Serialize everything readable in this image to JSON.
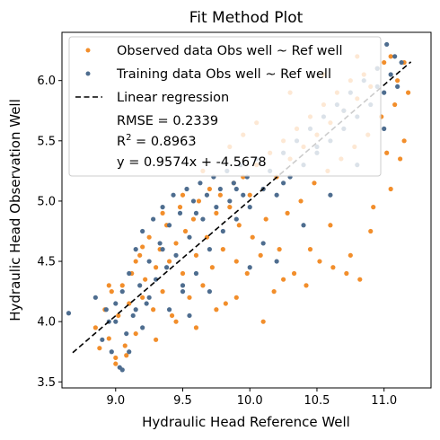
{
  "chart_data": {
    "type": "scatter",
    "title": "Fit Method Plot",
    "xlabel": "Hydraulic Head Reference Well",
    "ylabel": "Hydraulic Head Observation Well",
    "xlim": [
      8.6,
      11.35
    ],
    "ylim": [
      3.45,
      6.4
    ],
    "xticks": [
      "9.0",
      "9.5",
      "10.0",
      "10.5",
      "11.0"
    ],
    "yticks": [
      "3.5",
      "4.0",
      "4.5",
      "5.0",
      "5.5",
      "6.0"
    ],
    "grid": false,
    "legend_position": "top-left",
    "series": [
      {
        "name": "Observed data Obs well ~ Ref well",
        "color": "#f28e2b",
        "marker": "dot",
        "points": [
          [
            8.85,
            3.95
          ],
          [
            8.88,
            3.78
          ],
          [
            8.92,
            4.1
          ],
          [
            8.95,
            3.86
          ],
          [
            8.97,
            4.25
          ],
          [
            9.0,
            3.7
          ],
          [
            9.02,
            4.05
          ],
          [
            9.05,
            4.3
          ],
          [
            9.07,
            3.8
          ],
          [
            9.1,
            4.15
          ],
          [
            9.12,
            4.4
          ],
          [
            9.15,
            3.9
          ],
          [
            9.18,
            4.55
          ],
          [
            9.2,
            4.2
          ],
          [
            9.22,
            4.35
          ],
          [
            9.25,
            4.7
          ],
          [
            9.28,
            4.1
          ],
          [
            9.3,
            4.45
          ],
          [
            9.33,
            4.6
          ],
          [
            9.35,
            4.25
          ],
          [
            9.38,
            4.8
          ],
          [
            9.4,
            4.5
          ],
          [
            9.42,
            4.05
          ],
          [
            9.45,
            4.65
          ],
          [
            9.48,
            4.95
          ],
          [
            9.5,
            4.4
          ],
          [
            9.52,
            4.75
          ],
          [
            9.55,
            4.2
          ],
          [
            9.58,
            4.85
          ],
          [
            9.6,
            4.55
          ],
          [
            9.62,
            5.0
          ],
          [
            9.65,
            4.3
          ],
          [
            9.68,
            4.7
          ],
          [
            9.7,
            5.1
          ],
          [
            9.72,
            4.45
          ],
          [
            9.75,
            4.9
          ],
          [
            9.78,
            5.05
          ],
          [
            9.8,
            4.6
          ],
          [
            9.82,
            4.15
          ],
          [
            9.85,
            4.95
          ],
          [
            9.88,
            5.15
          ],
          [
            9.9,
            4.5
          ],
          [
            9.92,
            4.8
          ],
          [
            9.95,
            5.2
          ],
          [
            9.98,
            4.4
          ],
          [
            10.0,
            5.05
          ],
          [
            10.02,
            4.7
          ],
          [
            10.05,
            5.3
          ],
          [
            10.08,
            4.55
          ],
          [
            10.1,
            5.1
          ],
          [
            10.12,
            4.85
          ],
          [
            10.15,
            5.4
          ],
          [
            10.18,
            4.25
          ],
          [
            10.2,
            5.2
          ],
          [
            10.22,
            4.6
          ],
          [
            10.25,
            5.5
          ],
          [
            10.28,
            4.9
          ],
          [
            10.3,
            5.35
          ],
          [
            10.33,
            4.4
          ],
          [
            10.35,
            5.6
          ],
          [
            10.38,
            5.0
          ],
          [
            10.4,
            5.45
          ],
          [
            10.42,
            4.3
          ],
          [
            10.45,
            5.7
          ],
          [
            10.48,
            5.15
          ],
          [
            10.5,
            5.55
          ],
          [
            10.52,
            4.5
          ],
          [
            10.55,
            5.8
          ],
          [
            10.58,
            5.25
          ],
          [
            10.6,
            5.65
          ],
          [
            10.62,
            4.45
          ],
          [
            10.65,
            5.9
          ],
          [
            10.68,
            5.35
          ],
          [
            10.7,
            5.75
          ],
          [
            10.72,
            4.4
          ],
          [
            10.75,
            6.0
          ],
          [
            10.78,
            5.45
          ],
          [
            10.8,
            5.85
          ],
          [
            10.82,
            4.35
          ],
          [
            10.85,
            6.05
          ],
          [
            10.88,
            5.55
          ],
          [
            10.9,
            5.95
          ],
          [
            10.92,
            4.95
          ],
          [
            10.95,
            6.1
          ],
          [
            10.98,
            5.7
          ],
          [
            11.0,
            6.15
          ],
          [
            11.02,
            5.4
          ],
          [
            11.05,
            6.2
          ],
          [
            11.08,
            5.8
          ],
          [
            11.1,
            6.0
          ],
          [
            11.12,
            5.35
          ],
          [
            11.15,
            6.15
          ],
          [
            11.18,
            5.9
          ],
          [
            9.0,
            3.65
          ],
          [
            9.08,
            3.72
          ],
          [
            9.3,
            3.85
          ],
          [
            9.45,
            4.0
          ],
          [
            9.6,
            3.95
          ],
          [
            9.75,
            4.1
          ],
          [
            9.9,
            4.2
          ],
          [
            10.1,
            4.0
          ],
          [
            10.25,
            4.35
          ],
          [
            10.45,
            4.6
          ],
          [
            10.6,
            4.8
          ],
          [
            10.75,
            4.55
          ],
          [
            10.9,
            4.75
          ],
          [
            11.05,
            5.1
          ],
          [
            11.15,
            5.5
          ],
          [
            9.2,
            4.62
          ],
          [
            9.5,
            5.05
          ],
          [
            9.85,
            5.45
          ],
          [
            10.05,
            5.65
          ],
          [
            10.3,
            5.9
          ],
          [
            10.55,
            6.05
          ],
          [
            10.8,
            6.2
          ],
          [
            8.95,
            4.3
          ],
          [
            9.15,
            4.5
          ],
          [
            9.35,
            4.9
          ],
          [
            9.65,
            5.25
          ],
          [
            9.95,
            5.55
          ]
        ]
      },
      {
        "name": "Training data Obs well ~ Ref well",
        "color": "#4e6d8f",
        "marker": "dot",
        "points": [
          [
            8.65,
            4.07
          ],
          [
            8.85,
            4.2
          ],
          [
            8.9,
            3.85
          ],
          [
            8.93,
            4.1
          ],
          [
            8.97,
            3.75
          ],
          [
            9.0,
            4.0
          ],
          [
            9.03,
            3.62
          ],
          [
            9.05,
            4.25
          ],
          [
            9.08,
            3.9
          ],
          [
            9.1,
            4.4
          ],
          [
            9.13,
            4.05
          ],
          [
            9.15,
            4.6
          ],
          [
            9.18,
            4.3
          ],
          [
            9.2,
            4.75
          ],
          [
            9.23,
            4.15
          ],
          [
            9.25,
            4.5
          ],
          [
            9.28,
            4.85
          ],
          [
            9.3,
            4.35
          ],
          [
            9.33,
            4.65
          ],
          [
            9.35,
            4.95
          ],
          [
            9.38,
            4.45
          ],
          [
            9.4,
            4.8
          ],
          [
            9.43,
            5.05
          ],
          [
            9.45,
            4.55
          ],
          [
            9.48,
            4.9
          ],
          [
            9.5,
            4.25
          ],
          [
            9.53,
            5.1
          ],
          [
            9.55,
            4.7
          ],
          [
            9.58,
            5.0
          ],
          [
            9.6,
            4.4
          ],
          [
            9.63,
            5.15
          ],
          [
            9.65,
            4.85
          ],
          [
            9.68,
            5.05
          ],
          [
            9.7,
            4.6
          ],
          [
            9.73,
            5.2
          ],
          [
            9.75,
            4.95
          ],
          [
            9.78,
            5.1
          ],
          [
            9.8,
            4.75
          ],
          [
            9.83,
            5.25
          ],
          [
            9.85,
            5.0
          ],
          [
            9.88,
            5.15
          ],
          [
            9.9,
            4.85
          ],
          [
            9.93,
            5.3
          ],
          [
            9.95,
            5.05
          ],
          [
            9.98,
            5.2
          ],
          [
            10.0,
            4.95
          ],
          [
            10.05,
            5.35
          ],
          [
            10.1,
            5.1
          ],
          [
            10.15,
            5.25
          ],
          [
            10.2,
            5.05
          ],
          [
            10.25,
            5.4
          ],
          [
            10.3,
            5.2
          ],
          [
            10.35,
            5.5
          ],
          [
            10.4,
            5.3
          ],
          [
            10.45,
            5.6
          ],
          [
            10.5,
            5.4
          ],
          [
            10.55,
            5.7
          ],
          [
            10.6,
            5.5
          ],
          [
            10.65,
            5.8
          ],
          [
            10.7,
            5.6
          ],
          [
            10.75,
            5.9
          ],
          [
            10.8,
            5.7
          ],
          [
            10.85,
            6.0
          ],
          [
            10.9,
            5.8
          ],
          [
            10.95,
            6.1
          ],
          [
            11.0,
            5.9
          ],
          [
            11.02,
            6.3
          ],
          [
            11.05,
            6.05
          ],
          [
            11.08,
            6.2
          ],
          [
            11.1,
            5.95
          ],
          [
            11.13,
            6.15
          ],
          [
            9.05,
            3.6
          ],
          [
            9.1,
            3.75
          ],
          [
            9.2,
            3.95
          ],
          [
            9.25,
            4.2
          ],
          [
            9.4,
            4.1
          ],
          [
            9.5,
            4.3
          ],
          [
            9.55,
            4.05
          ],
          [
            9.7,
            4.25
          ],
          [
            10.0,
            4.45
          ],
          [
            10.1,
            4.65
          ],
          [
            10.2,
            4.5
          ],
          [
            10.4,
            4.8
          ],
          [
            10.6,
            5.05
          ],
          [
            10.8,
            5.3
          ],
          [
            11.0,
            5.6
          ],
          [
            8.95,
            4.0
          ],
          [
            9.0,
            4.15
          ],
          [
            9.15,
            4.1
          ],
          [
            9.35,
            4.6
          ],
          [
            9.6,
            4.9
          ],
          [
            9.9,
            5.1
          ],
          [
            10.25,
            5.15
          ],
          [
            10.5,
            5.45
          ],
          [
            10.7,
            5.75
          ],
          [
            10.95,
            5.95
          ]
        ]
      }
    ],
    "regression": {
      "name": "Linear regression",
      "slope": 0.9574,
      "intercept": -4.5678,
      "x_range": [
        8.68,
        11.2
      ],
      "color": "#000000",
      "style": "dashed"
    },
    "stats": {
      "rmse": "RMSE = 0.2339",
      "r2_prefix": "R",
      "r2_sup": "2",
      "r2_value": " = 0.8963",
      "equation": "y = 0.9574x + -4.5678"
    }
  }
}
